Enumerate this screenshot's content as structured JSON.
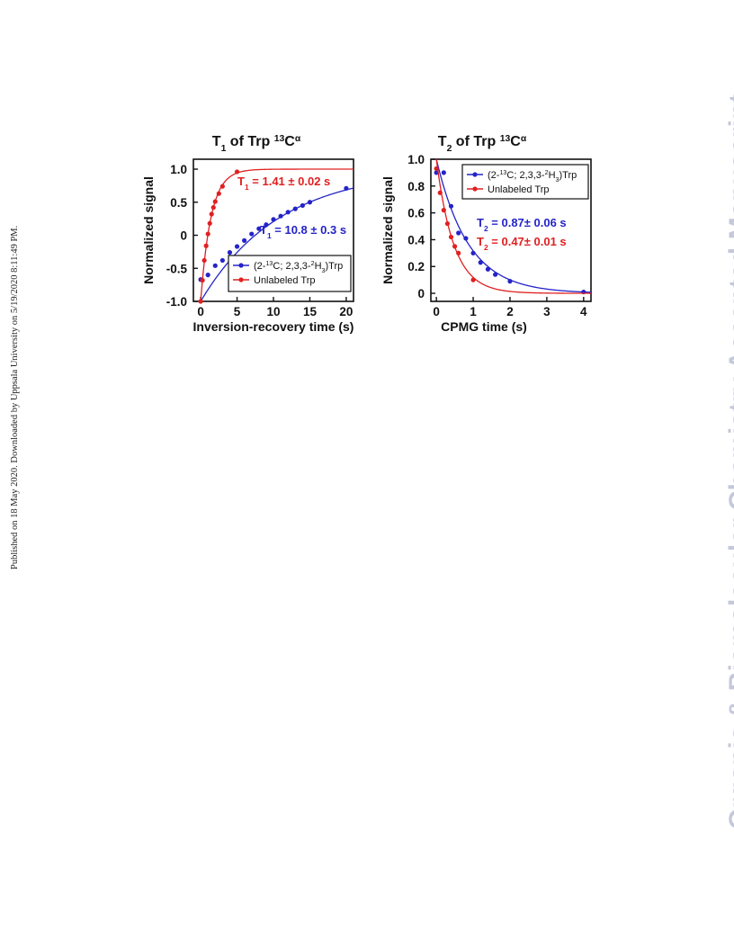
{
  "side_text": "Published on 18 May 2020. Downloaded by Uppsala University on 5/19/2020 8:11:49 PM.",
  "watermark": "Organic & Biomolecular Chemistry Accepted Manuscript",
  "colors": {
    "blue": "#2424c8",
    "red": "#e02020",
    "axis": "#111111"
  },
  "chart_data": [
    {
      "type": "scatter",
      "title": "T1 of Trp 13Cα",
      "xlabel": "Inversion-recovery time (s)",
      "ylabel": "Normalized signal",
      "xlim": [
        -1,
        21
      ],
      "ylim": [
        -1.0,
        1.15
      ],
      "xticks": [
        0,
        5,
        10,
        15,
        20
      ],
      "yticks": [
        -1.0,
        -0.5,
        0,
        0.5,
        1.0
      ],
      "ytick_labels": [
        "-1.0",
        "-0.5",
        "0",
        "0.5",
        "1.0"
      ],
      "grid": false,
      "legend_position": "bottom-right",
      "series": [
        {
          "name": "(2-13C; 2,3,3-2H3)Trp",
          "color": "blue",
          "model": "inversion_recovery",
          "param": 10.8,
          "annotation": "T1 = 10.8 ± 0.3 s",
          "x": [
            0,
            1,
            2,
            3,
            4,
            5,
            6,
            7,
            8,
            9,
            10,
            11,
            12,
            13,
            14,
            15,
            20
          ],
          "y": [
            -0.67,
            -0.6,
            -0.46,
            -0.38,
            -0.26,
            -0.17,
            -0.08,
            0.02,
            0.1,
            0.16,
            0.24,
            0.29,
            0.35,
            0.4,
            0.45,
            0.5,
            0.71
          ]
        },
        {
          "name": "Unlabeled Trp",
          "color": "red",
          "model": "inversion_recovery",
          "param": 1.41,
          "annotation": "T1 = 1.41 ± 0.02 s",
          "x": [
            0,
            0.25,
            0.5,
            0.75,
            1,
            1.25,
            1.5,
            1.75,
            2,
            2.5,
            3,
            5
          ],
          "y": [
            -1.0,
            -0.68,
            -0.38,
            -0.16,
            0.02,
            0.18,
            0.32,
            0.42,
            0.51,
            0.63,
            0.74,
            0.96
          ]
        }
      ]
    },
    {
      "type": "scatter",
      "title": "T2 of Trp 13Cα",
      "xlabel": "CPMG time (s)",
      "ylabel": "Normalized signal",
      "xlim": [
        -0.15,
        4.2
      ],
      "ylim": [
        -0.06,
        1.0
      ],
      "xticks": [
        0,
        1,
        2,
        3,
        4
      ],
      "yticks": [
        0,
        0.2,
        0.4,
        0.6,
        0.8,
        1.0
      ],
      "ytick_labels": [
        "0",
        "0.2",
        "0.4",
        "0.6",
        "0.8",
        "1.0"
      ],
      "grid": false,
      "legend_position": "top-right",
      "series": [
        {
          "name": "(2-13C; 2,3,3-2H3)Trp",
          "color": "blue",
          "model": "exponential_decay",
          "param": 0.87,
          "annotation": "T2 = 0.87± 0.06 s",
          "x": [
            0,
            0.2,
            0.4,
            0.6,
            0.8,
            1.0,
            1.2,
            1.4,
            1.6,
            2.0,
            4.0
          ],
          "y": [
            0.9,
            0.9,
            0.65,
            0.45,
            0.41,
            0.3,
            0.23,
            0.18,
            0.14,
            0.09,
            0.01
          ]
        },
        {
          "name": "Unlabeled Trp",
          "color": "red",
          "model": "exponential_decay",
          "param": 0.47,
          "annotation": "T2 = 0.47± 0.01 s",
          "x": [
            0,
            0.1,
            0.2,
            0.3,
            0.4,
            0.5,
            0.6,
            1.0
          ],
          "y": [
            0.93,
            0.75,
            0.62,
            0.52,
            0.42,
            0.35,
            0.3,
            0.1
          ]
        }
      ]
    }
  ]
}
